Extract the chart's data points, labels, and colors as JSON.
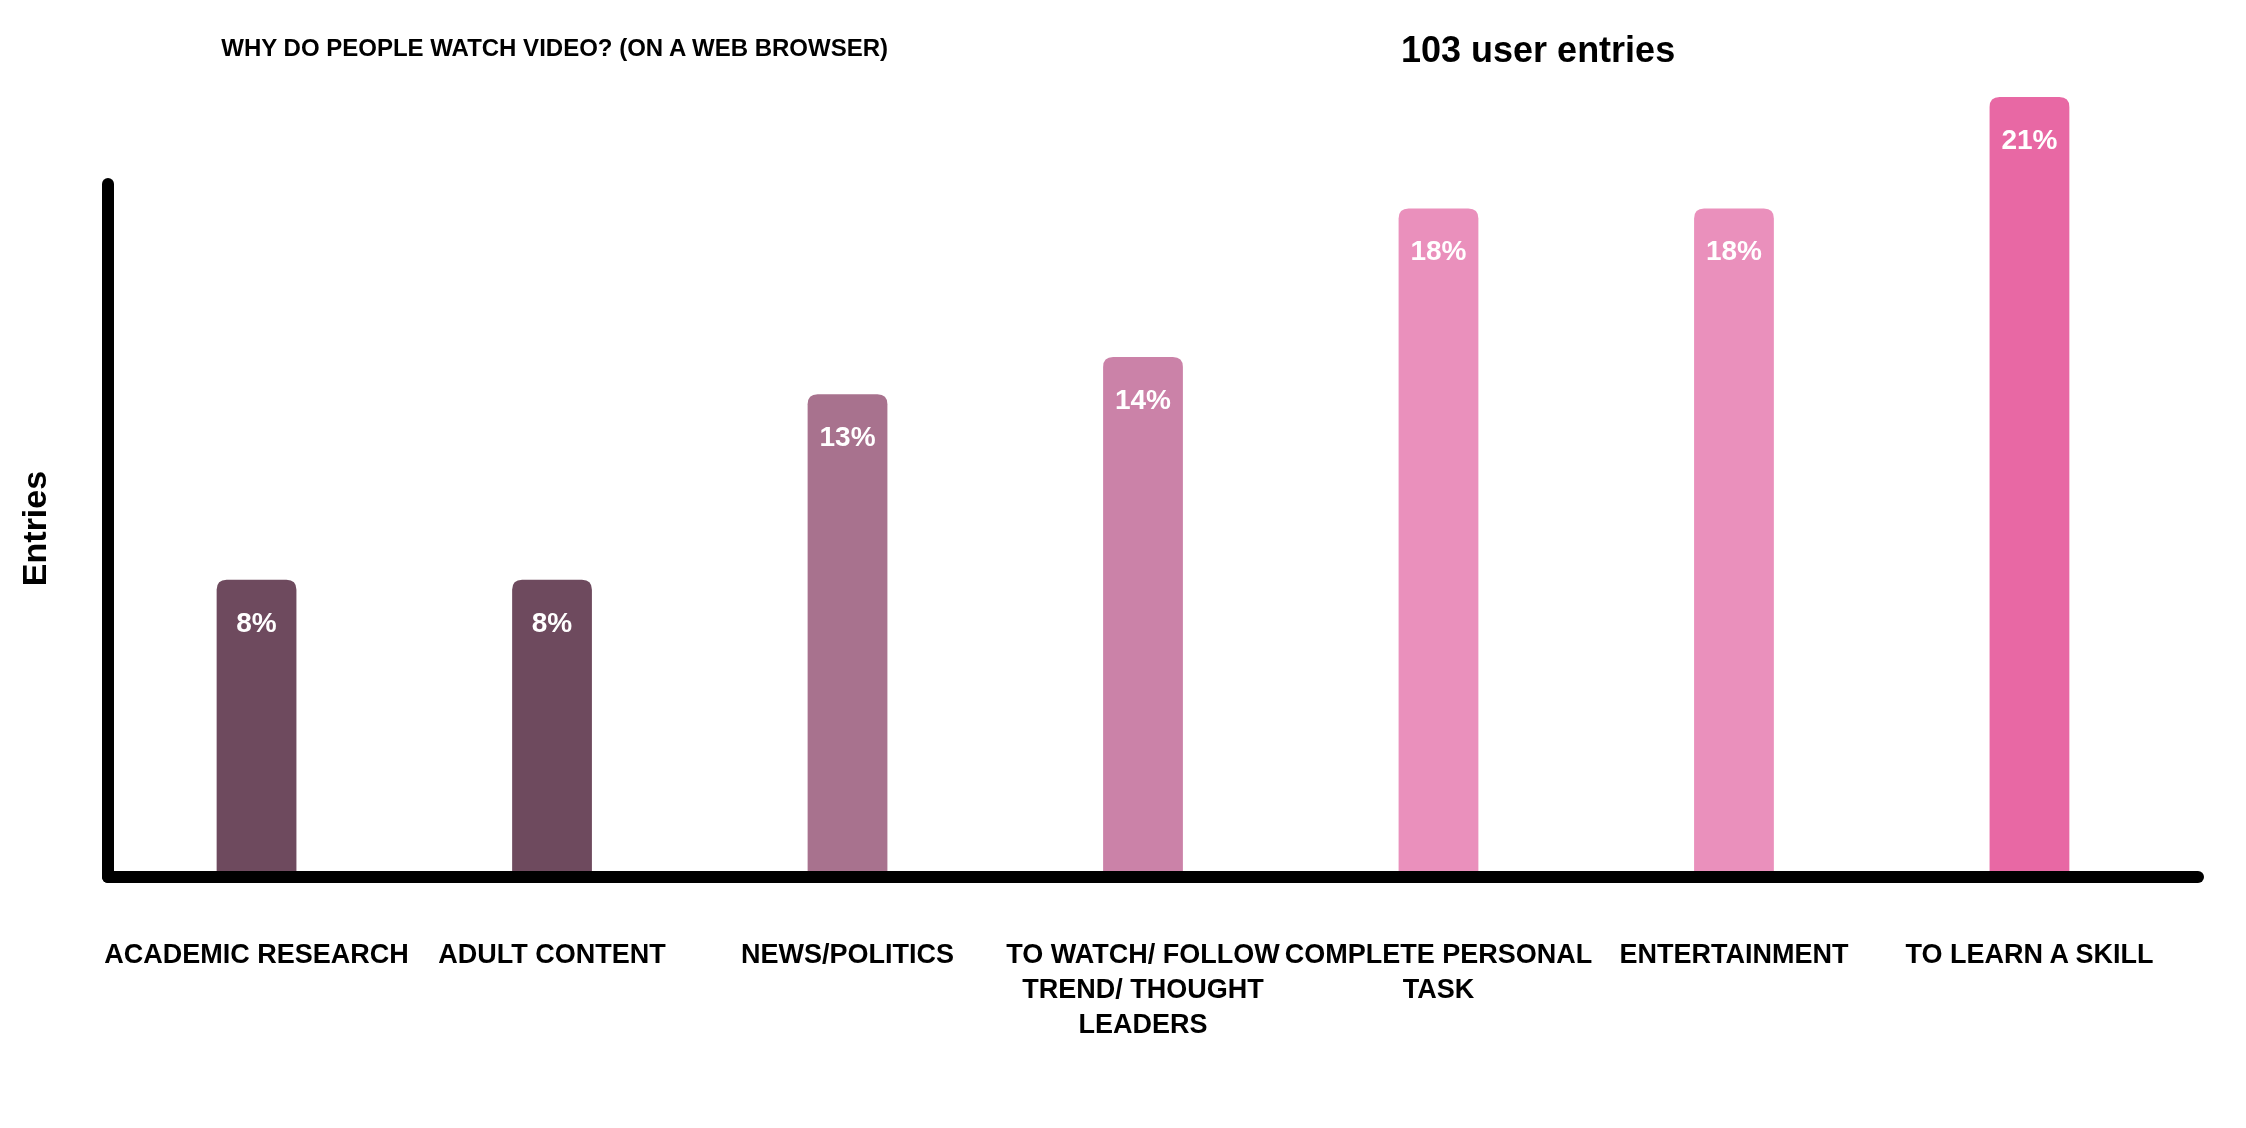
{
  "chart_data": {
    "type": "bar",
    "title": "WHY DO PEOPLE WATCH VIDEO? (ON A WEB BROWSER)",
    "subtitle": "103 user entries",
    "ylabel": "Entries",
    "categories": [
      "ACADEMIC RESEARCH",
      "ADULT CONTENT",
      "NEWS/POLITICS",
      "TO WATCH/ FOLLOW TREND/ THOUGHT LEADERS",
      "COMPLETE PERSONAL TASK",
      "ENTERTAINMENT",
      "TO LEARN A SKILL"
    ],
    "values": [
      8,
      8,
      13,
      14,
      18,
      18,
      21
    ],
    "colors": [
      "#6e4a5e",
      "#6e4a5e",
      "#a8728e",
      "#cb82a8",
      "#ea90bc",
      "#ea90bc",
      "#e868a4"
    ],
    "value_labels": [
      "8%",
      "8%",
      "13%",
      "14%",
      "18%",
      "18%",
      "21%"
    ],
    "data_labels": false
  }
}
